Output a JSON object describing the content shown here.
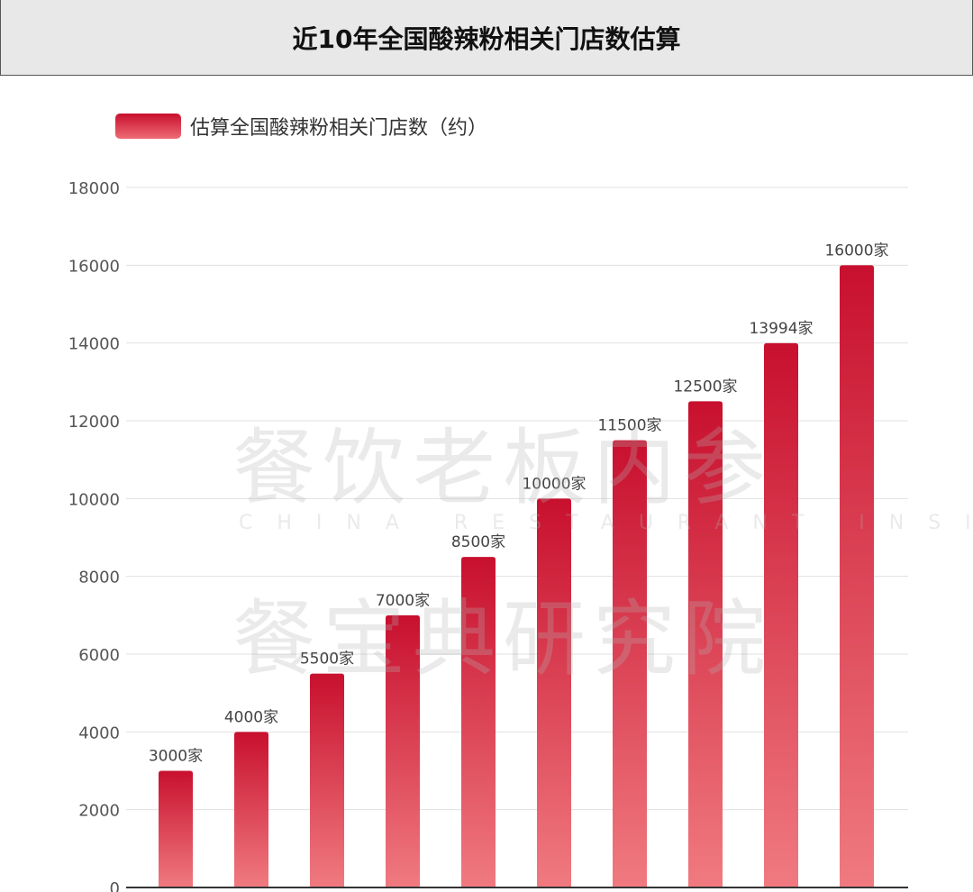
{
  "header": {
    "title": "近10年全国酸辣粉相关门店数估算"
  },
  "watermark": {
    "line1": "餐饮老板内参",
    "line2": "CHINA RESTAURANT INSIDER",
    "line3": "餐宝典研究院"
  },
  "chart_data": {
    "type": "bar",
    "title": "近10年全国酸辣粉相关门店数估算",
    "legend_position": "top-left",
    "grid": true,
    "ylim": [
      0,
      18000
    ],
    "yticks": [
      0,
      2000,
      4000,
      6000,
      8000,
      10000,
      12000,
      14000,
      16000,
      18000
    ],
    "series": [
      {
        "name": "估算全国酸辣粉相关门店数（约）",
        "values": [
          3000,
          4000,
          5500,
          7000,
          8500,
          10000,
          11500,
          12500,
          13994,
          16000
        ],
        "labels": [
          "3000家",
          "4000家",
          "5500家",
          "7000家",
          "8500家",
          "10000家",
          "11500家",
          "12500家",
          "13994家",
          "16000家"
        ]
      }
    ],
    "colors": {
      "bar_top": "#c8102e",
      "bar_bottom": "#f07a80"
    }
  }
}
